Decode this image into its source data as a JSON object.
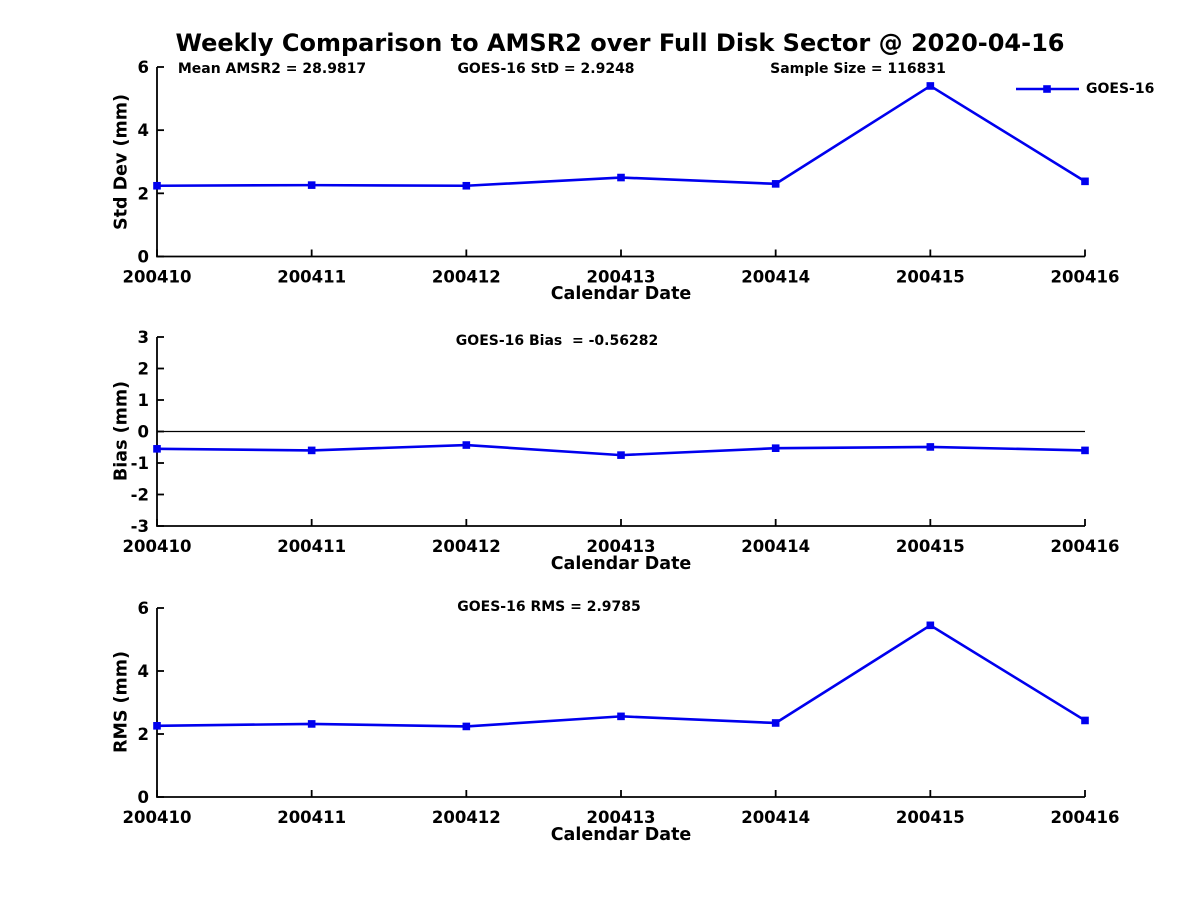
{
  "figure_title": "Weekly Comparison to AMSR2 over Full Disk Sector @ 2020-04-16",
  "xlabel": "Calendar Date",
  "legend": {
    "label": "GOES-16"
  },
  "colors": {
    "line": "#0000EE",
    "axis": "#000000",
    "text": "#000000",
    "background": "#FFFFFF"
  },
  "categories": [
    "200410",
    "200411",
    "200412",
    "200413",
    "200414",
    "200415",
    "200416"
  ],
  "chart_data": [
    {
      "type": "line",
      "name": "std-dev",
      "ylabel": "Std Dev (mm)",
      "xlabel": "Calendar Date",
      "ylim": [
        0,
        6
      ],
      "yticks": [
        0,
        2,
        4,
        6
      ],
      "grid": false,
      "legend_position": "top-right-inside",
      "categories": [
        "200410",
        "200411",
        "200412",
        "200413",
        "200414",
        "200415",
        "200416"
      ],
      "series": [
        {
          "name": "GOES-16",
          "values": [
            2.24,
            2.26,
            2.24,
            2.5,
            2.3,
            5.4,
            2.38
          ]
        }
      ],
      "annotations": [
        {
          "text": "Mean AMSR2 = 28.9817"
        },
        {
          "text": "GOES-16 StD = 2.9248"
        },
        {
          "text": "Sample Size = 116831"
        }
      ]
    },
    {
      "type": "line",
      "name": "bias",
      "ylabel": "Bias (mm)",
      "xlabel": "Calendar Date",
      "ylim": [
        -3,
        3
      ],
      "yticks": [
        3,
        2,
        1,
        0,
        -1,
        -2,
        -3
      ],
      "zero_line": true,
      "grid": false,
      "categories": [
        "200410",
        "200411",
        "200412",
        "200413",
        "200414",
        "200415",
        "200416"
      ],
      "series": [
        {
          "name": "GOES-16",
          "values": [
            -0.55,
            -0.6,
            -0.43,
            -0.75,
            -0.53,
            -0.49,
            -0.6
          ]
        }
      ],
      "annotations": [
        {
          "text": "GOES-16 Bias  = -0.56282"
        }
      ]
    },
    {
      "type": "line",
      "name": "rms",
      "ylabel": "RMS (mm)",
      "xlabel": "Calendar Date",
      "ylim": [
        0,
        6
      ],
      "yticks": [
        0,
        2,
        4,
        6
      ],
      "grid": false,
      "categories": [
        "200410",
        "200411",
        "200412",
        "200413",
        "200414",
        "200415",
        "200416"
      ],
      "series": [
        {
          "name": "GOES-16",
          "values": [
            2.26,
            2.32,
            2.24,
            2.56,
            2.35,
            5.45,
            2.43
          ]
        }
      ],
      "annotations": [
        {
          "text": "GOES-16 RMS = 2.9785"
        }
      ]
    }
  ]
}
